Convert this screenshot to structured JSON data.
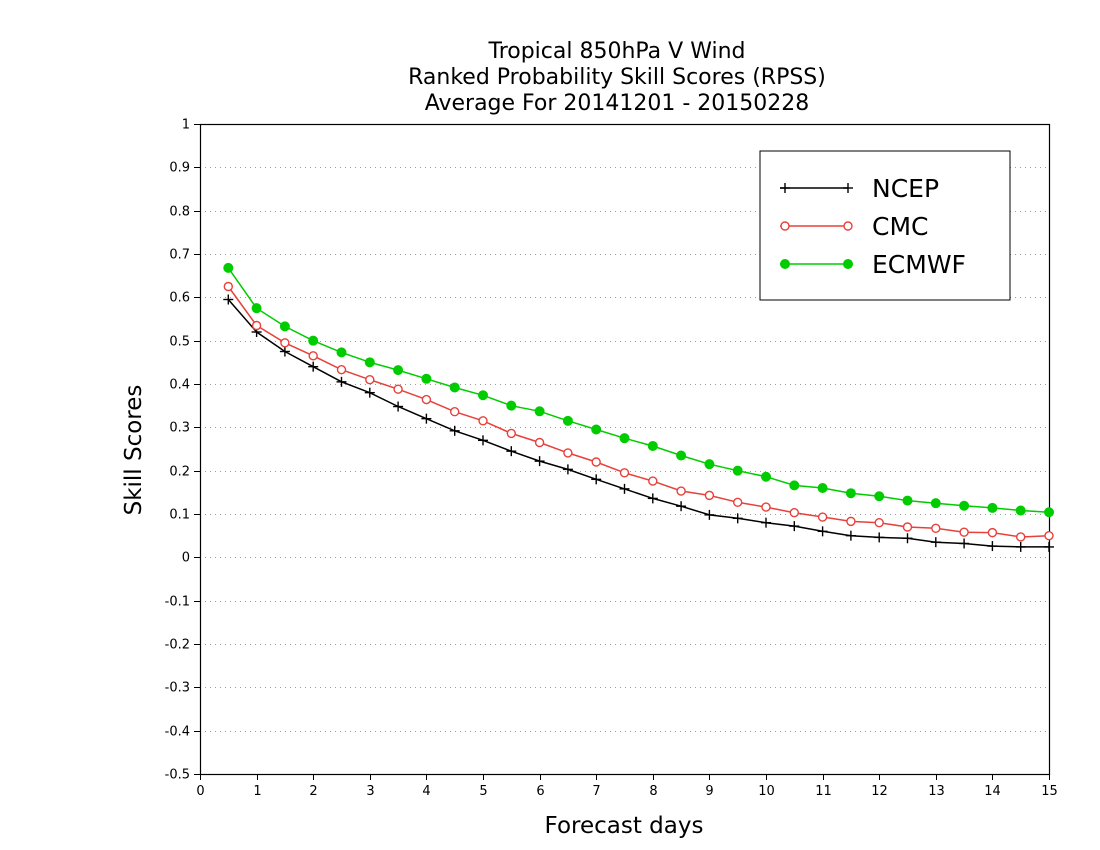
{
  "chart_data": {
    "type": "line",
    "title_lines": [
      "Tropical 850hPa V Wind",
      "Ranked Probability Skill Scores (RPSS)",
      "Average For 20141201 - 20150228"
    ],
    "xlabel": "Forecast days",
    "ylabel": "Skill Scores",
    "xlim": [
      0,
      15
    ],
    "ylim": [
      -0.5,
      1
    ],
    "x_ticks": [
      0,
      1,
      2,
      3,
      4,
      5,
      6,
      7,
      8,
      9,
      10,
      11,
      12,
      13,
      14,
      15
    ],
    "y_ticks": [
      -0.5,
      -0.4,
      -0.3,
      -0.2,
      -0.1,
      0,
      0.1,
      0.2,
      0.3,
      0.4,
      0.5,
      0.6,
      0.7,
      0.8,
      0.9,
      1
    ],
    "y_tick_labels": [
      "-0.5",
      "-0.4",
      "-0.3",
      "-0.2",
      "-0.1",
      "0",
      "0.1",
      "0.2",
      "0.3",
      "0.4",
      "0.5",
      "0.6",
      "0.7",
      "0.8",
      "0.9",
      "1"
    ],
    "grid": "horizontal dotted",
    "legend_position": "top-right",
    "x": [
      0.5,
      1.0,
      1.5,
      2.0,
      2.5,
      3.0,
      3.5,
      4.0,
      4.5,
      5.0,
      5.5,
      6.0,
      6.5,
      7.0,
      7.5,
      8.0,
      8.5,
      9.0,
      9.5,
      10.0,
      10.5,
      11.0,
      11.5,
      12.0,
      12.5,
      13.0,
      13.5,
      14.0,
      14.5,
      15.0
    ],
    "series": [
      {
        "name": "NCEP",
        "color": "#000000",
        "marker": "plus",
        "values": [
          0.595,
          0.52,
          0.475,
          0.44,
          0.405,
          0.38,
          0.348,
          0.32,
          0.292,
          0.27,
          0.245,
          0.222,
          0.203,
          0.18,
          0.158,
          0.136,
          0.118,
          0.098,
          0.09,
          0.08,
          0.072,
          0.06,
          0.05,
          0.046,
          0.044,
          0.035,
          0.032,
          0.026,
          0.024,
          0.024
        ]
      },
      {
        "name": "CMC",
        "color": "#e8403a",
        "marker": "open-circle",
        "values": [
          0.625,
          0.535,
          0.495,
          0.465,
          0.433,
          0.41,
          0.388,
          0.364,
          0.336,
          0.315,
          0.286,
          0.265,
          0.241,
          0.22,
          0.195,
          0.176,
          0.153,
          0.143,
          0.127,
          0.116,
          0.103,
          0.093,
          0.083,
          0.08,
          0.07,
          0.067,
          0.058,
          0.057,
          0.047,
          0.05
        ]
      },
      {
        "name": "ECMWF",
        "color": "#00cc00",
        "marker": "filled-circle",
        "values": [
          0.668,
          0.575,
          0.533,
          0.5,
          0.473,
          0.45,
          0.432,
          0.412,
          0.392,
          0.374,
          0.35,
          0.337,
          0.315,
          0.295,
          0.275,
          0.257,
          0.235,
          0.215,
          0.2,
          0.186,
          0.166,
          0.16,
          0.148,
          0.141,
          0.131,
          0.125,
          0.119,
          0.114,
          0.108,
          0.104
        ]
      }
    ]
  }
}
